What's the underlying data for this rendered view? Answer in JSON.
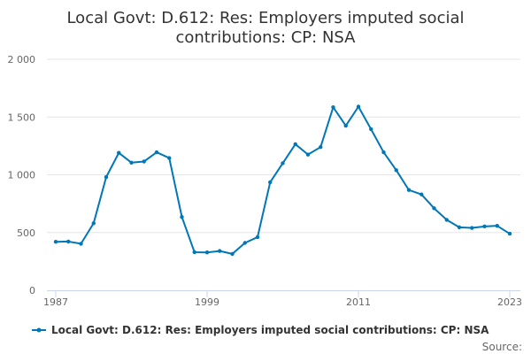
{
  "chart_data": {
    "type": "line",
    "title_lines": [
      "Local Govt: D.612: Res: Employers imputed social",
      "contributions: CP: NSA"
    ],
    "xlabel": "",
    "ylabel": "",
    "x": [
      1987,
      1988,
      1989,
      1990,
      1991,
      1992,
      1993,
      1994,
      1995,
      1996,
      1997,
      1998,
      1999,
      2000,
      2001,
      2002,
      2003,
      2004,
      2005,
      2006,
      2007,
      2008,
      2009,
      2010,
      2011,
      2012,
      2013,
      2014,
      2015,
      2016,
      2017,
      2018,
      2019,
      2020,
      2021,
      2022,
      2023
    ],
    "xlim": [
      1987,
      2023
    ],
    "x_ticks": [
      1987,
      1999,
      2011,
      2023
    ],
    "x_tick_labels": [
      "1987",
      "1999",
      "2011",
      "2023"
    ],
    "ylim": [
      0,
      2000
    ],
    "y_ticks": [
      0,
      500,
      1000,
      1500,
      2000
    ],
    "y_tick_labels": [
      "0",
      "500",
      "1 000",
      "1 500",
      "2 000"
    ],
    "grid": true,
    "legend_position": "bottom",
    "series": [
      {
        "name": "Local Govt: D.612: Res: Employers imputed social contributions: CP: NSA",
        "color": "#0077b6",
        "values": [
          420,
          422,
          403,
          580,
          980,
          1190,
          1105,
          1115,
          1195,
          1145,
          635,
          330,
          328,
          340,
          315,
          410,
          460,
          935,
          1100,
          1265,
          1175,
          1240,
          1585,
          1425,
          1590,
          1395,
          1195,
          1040,
          868,
          830,
          710,
          610,
          545,
          540,
          553,
          558,
          490
        ]
      }
    ]
  },
  "credits": "Source:"
}
